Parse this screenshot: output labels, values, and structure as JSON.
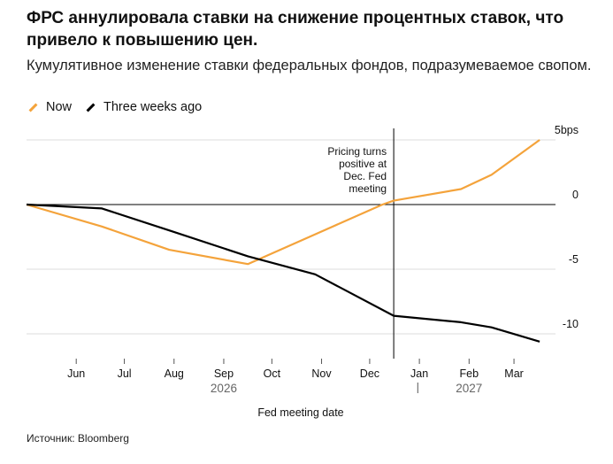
{
  "title": "ФРС аннулировала ставки на снижение процентных ставок, что привело к повышению цен.",
  "subtitle": "Кумулятивное изменение ставки федеральных фондов, подразумеваемое свопом.",
  "source": "Источник: Bloomberg",
  "colors": {
    "now": "#F4A33B",
    "three_weeks_ago": "#000000",
    "grid": "#DDDDDD",
    "zero": "#000000"
  },
  "chart_data": {
    "type": "line",
    "title": "ФРС аннулировала ставки на снижение процентных ставок, что привело к повышению цен.",
    "subtitle": "Кумулятивное изменение ставки федеральных фондов, подразумеваемое свопом.",
    "xlabel": "Fed meeting date",
    "ylabel": "",
    "y_unit": "bps",
    "ylim": [
      -11.5,
      5.5
    ],
    "yticks": [
      5,
      0,
      -5,
      -10
    ],
    "ytick_labels": [
      "5bps",
      "0",
      "-5",
      "-10"
    ],
    "xlim": [
      "2026-05-01",
      "2027-03-28"
    ],
    "x_ticks": [
      {
        "date": "2026-06-01",
        "label": "Jun"
      },
      {
        "date": "2026-07-01",
        "label": "Jul"
      },
      {
        "date": "2026-08-01",
        "label": "Aug"
      },
      {
        "date": "2026-09-01",
        "label": "Sep"
      },
      {
        "date": "2026-10-01",
        "label": "Oct"
      },
      {
        "date": "2026-11-01",
        "label": "Nov"
      },
      {
        "date": "2026-12-01",
        "label": "Dec"
      },
      {
        "date": "2027-01-01",
        "label": "Jan"
      },
      {
        "date": "2027-02-01",
        "label": "Feb"
      },
      {
        "date": "2027-03-01",
        "label": "Mar"
      }
    ],
    "year_labels": [
      {
        "date": "2026-09-01",
        "label": "2026"
      },
      {
        "date": "2027-02-01",
        "label": "2027"
      }
    ],
    "year_separator_date": "2026-12-31",
    "grid": true,
    "legend_placement": "top-left",
    "series": [
      {
        "name": "Now",
        "color": "#F4A33B",
        "points": [
          {
            "x": "2026-05-01",
            "y": 0
          },
          {
            "x": "2026-06-17",
            "y": -1.7
          },
          {
            "x": "2026-07-29",
            "y": -3.5
          },
          {
            "x": "2026-09-16",
            "y": -4.6
          },
          {
            "x": "2026-10-28",
            "y": -2.3
          },
          {
            "x": "2026-12-09",
            "y": 0
          },
          {
            "x": "2026-12-16",
            "y": 0.3
          },
          {
            "x": "2027-01-27",
            "y": 1.2
          },
          {
            "x": "2027-02-15",
            "y": 2.3
          },
          {
            "x": "2027-03-17",
            "y": 5.0
          }
        ]
      },
      {
        "name": "Three weeks ago",
        "color": "#000000",
        "points": [
          {
            "x": "2026-05-01",
            "y": 0
          },
          {
            "x": "2026-06-17",
            "y": -0.3
          },
          {
            "x": "2026-07-29",
            "y": -2.0
          },
          {
            "x": "2026-09-16",
            "y": -4.0
          },
          {
            "x": "2026-10-28",
            "y": -5.4
          },
          {
            "x": "2026-12-16",
            "y": -8.6
          },
          {
            "x": "2027-01-27",
            "y": -9.1
          },
          {
            "x": "2027-02-15",
            "y": -9.5
          },
          {
            "x": "2027-03-17",
            "y": -10.6
          }
        ]
      }
    ],
    "annotation": {
      "x": "2026-12-16",
      "lines": [
        "Pricing turns",
        "positive at",
        "Dec. Fed",
        "meeting"
      ]
    }
  }
}
